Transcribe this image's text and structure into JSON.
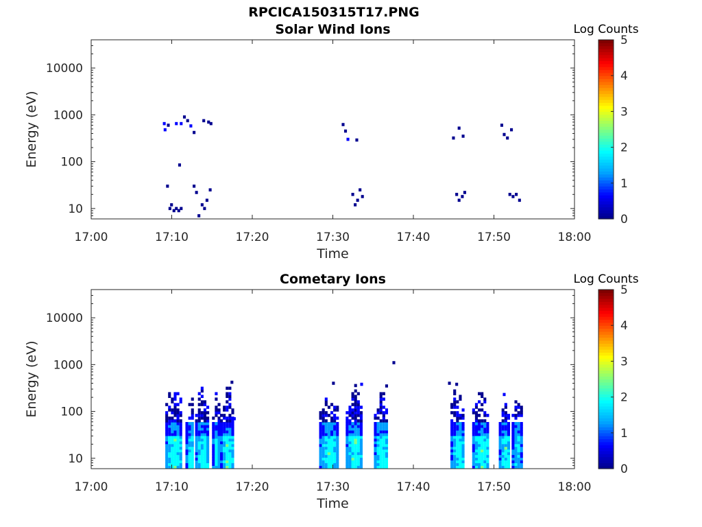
{
  "page_title": "RPCICA150315T17.PNG",
  "colormap": [
    "#00008f",
    "#0000ff",
    "#00a0ff",
    "#00ffff",
    "#80ff80",
    "#ffff00",
    "#ff8000",
    "#ff0000",
    "#800000"
  ],
  "chart_data": [
    {
      "type": "heatmap",
      "title": "Solar Wind Ions",
      "xlabel": "Time",
      "ylabel": "Energy (eV)",
      "x_ticks": [
        "17:00",
        "17:10",
        "17:20",
        "17:30",
        "17:40",
        "17:50",
        "18:00"
      ],
      "xlim_minutes": [
        0,
        60
      ],
      "y_scale": "log",
      "y_ticks": [
        "10",
        "100",
        "1000",
        "10000"
      ],
      "ylim": [
        6,
        40000
      ],
      "colorbar": {
        "title": "Log Counts",
        "ticks": [
          "0",
          "1",
          "2",
          "3",
          "4",
          "5"
        ],
        "range": [
          0,
          5
        ]
      },
      "cells": [
        {
          "t": 8.9,
          "e": 650,
          "v": 0.6
        },
        {
          "t": 9.0,
          "e": 480,
          "v": 0.5
        },
        {
          "t": 9.4,
          "e": 600,
          "v": 0.3
        },
        {
          "t": 10.4,
          "e": 650,
          "v": 0.5
        },
        {
          "t": 11.0,
          "e": 650,
          "v": 0.4
        },
        {
          "t": 11.4,
          "e": 900,
          "v": 0.3
        },
        {
          "t": 11.8,
          "e": 750,
          "v": 0.3
        },
        {
          "t": 12.2,
          "e": 580,
          "v": 0.5
        },
        {
          "t": 12.6,
          "e": 420,
          "v": 0.2
        },
        {
          "t": 13.8,
          "e": 750,
          "v": 0.3
        },
        {
          "t": 14.4,
          "e": 700,
          "v": 0.2
        },
        {
          "t": 14.7,
          "e": 650,
          "v": 0.3
        },
        {
          "t": 10.8,
          "e": 85,
          "v": 0.3
        },
        {
          "t": 9.3,
          "e": 30,
          "v": 0.1
        },
        {
          "t": 9.6,
          "e": 10,
          "v": 0.1
        },
        {
          "t": 9.8,
          "e": 12,
          "v": 0.1
        },
        {
          "t": 10.1,
          "e": 9,
          "v": 0.1
        },
        {
          "t": 10.4,
          "e": 10,
          "v": 0.1
        },
        {
          "t": 10.7,
          "e": 9,
          "v": 0.1
        },
        {
          "t": 11.0,
          "e": 10,
          "v": 0.1
        },
        {
          "t": 12.6,
          "e": 30,
          "v": 0.1
        },
        {
          "t": 12.9,
          "e": 22,
          "v": 0.1
        },
        {
          "t": 13.2,
          "e": 7,
          "v": 0.1
        },
        {
          "t": 13.6,
          "e": 12,
          "v": 0.1
        },
        {
          "t": 13.9,
          "e": 10,
          "v": 0.1
        },
        {
          "t": 14.2,
          "e": 15,
          "v": 0.1
        },
        {
          "t": 14.6,
          "e": 25,
          "v": 0.1
        },
        {
          "t": 31.1,
          "e": 620,
          "v": 0.2
        },
        {
          "t": 31.4,
          "e": 450,
          "v": 0.3
        },
        {
          "t": 31.7,
          "e": 300,
          "v": 0.4
        },
        {
          "t": 32.8,
          "e": 290,
          "v": 0.2
        },
        {
          "t": 32.3,
          "e": 20,
          "v": 0.1
        },
        {
          "t": 32.6,
          "e": 12,
          "v": 0.1
        },
        {
          "t": 32.9,
          "e": 15,
          "v": 0.1
        },
        {
          "t": 33.2,
          "e": 25,
          "v": 0.1
        },
        {
          "t": 33.5,
          "e": 18,
          "v": 0.1
        },
        {
          "t": 44.8,
          "e": 320,
          "v": 0.2
        },
        {
          "t": 45.5,
          "e": 520,
          "v": 0.2
        },
        {
          "t": 46.0,
          "e": 350,
          "v": 0.3
        },
        {
          "t": 45.2,
          "e": 20,
          "v": 0.1
        },
        {
          "t": 45.5,
          "e": 15,
          "v": 0.1
        },
        {
          "t": 45.9,
          "e": 18,
          "v": 0.1
        },
        {
          "t": 46.2,
          "e": 22,
          "v": 0.1
        },
        {
          "t": 50.8,
          "e": 600,
          "v": 0.2
        },
        {
          "t": 51.1,
          "e": 380,
          "v": 0.3
        },
        {
          "t": 51.5,
          "e": 320,
          "v": 0.2
        },
        {
          "t": 52.0,
          "e": 480,
          "v": 0.3
        },
        {
          "t": 51.8,
          "e": 20,
          "v": 0.1
        },
        {
          "t": 52.2,
          "e": 18,
          "v": 0.1
        },
        {
          "t": 52.6,
          "e": 20,
          "v": 0.1
        },
        {
          "t": 53.0,
          "e": 15,
          "v": 0.1
        }
      ]
    },
    {
      "type": "heatmap",
      "title": "Cometary Ions",
      "xlabel": "Time",
      "ylabel": "Energy (eV)",
      "x_ticks": [
        "17:00",
        "17:10",
        "17:20",
        "17:30",
        "17:40",
        "17:50",
        "18:00"
      ],
      "xlim_minutes": [
        0,
        60
      ],
      "y_scale": "log",
      "y_ticks": [
        "10",
        "100",
        "1000",
        "10000"
      ],
      "ylim": [
        6,
        40000
      ],
      "colorbar": {
        "title": "Log Counts",
        "ticks": [
          "0",
          "1",
          "2",
          "3",
          "4",
          "5"
        ],
        "range": [
          0,
          5
        ]
      },
      "bursts": [
        {
          "t0": 9.2,
          "t1": 11.2,
          "emax": 350,
          "peak": 2.1
        },
        {
          "t0": 11.7,
          "t1": 12.7,
          "emax": 220,
          "peak": 1.9
        },
        {
          "t0": 12.9,
          "t1": 14.6,
          "emax": 400,
          "peak": 2.0
        },
        {
          "t0": 15.0,
          "t1": 15.8,
          "emax": 300,
          "peak": 1.8
        },
        {
          "t0": 16.0,
          "t1": 17.6,
          "emax": 420,
          "peak": 2.1
        },
        {
          "t0": 28.3,
          "t1": 30.6,
          "emax": 300,
          "peak": 2.0
        },
        {
          "t0": 31.6,
          "t1": 33.6,
          "emax": 450,
          "peak": 2.1
        },
        {
          "t0": 35.1,
          "t1": 36.8,
          "emax": 300,
          "peak": 2.0
        },
        {
          "t0": 44.6,
          "t1": 46.3,
          "emax": 480,
          "peak": 2.0
        },
        {
          "t0": 47.3,
          "t1": 49.4,
          "emax": 300,
          "peak": 2.1
        },
        {
          "t0": 50.6,
          "t1": 52.0,
          "emax": 200,
          "peak": 2.0
        },
        {
          "t0": 52.2,
          "t1": 53.3,
          "emax": 300,
          "peak": 1.7
        }
      ],
      "cells": [
        {
          "t": 37.4,
          "e": 1100,
          "v": 0.3
        },
        {
          "t": 36.5,
          "e": 350,
          "v": 0.2
        },
        {
          "t": 33.4,
          "e": 380,
          "v": 0.4
        },
        {
          "t": 17.3,
          "e": 420,
          "v": 0.3
        },
        {
          "t": 17.6,
          "e": 70,
          "v": 0.4
        },
        {
          "t": 44.3,
          "e": 400,
          "v": 0.2
        },
        {
          "t": 45.2,
          "e": 380,
          "v": 0.3
        },
        {
          "t": 51.1,
          "e": 230,
          "v": 0.4
        },
        {
          "t": 29.9,
          "e": 400,
          "v": 0.2
        }
      ]
    }
  ]
}
